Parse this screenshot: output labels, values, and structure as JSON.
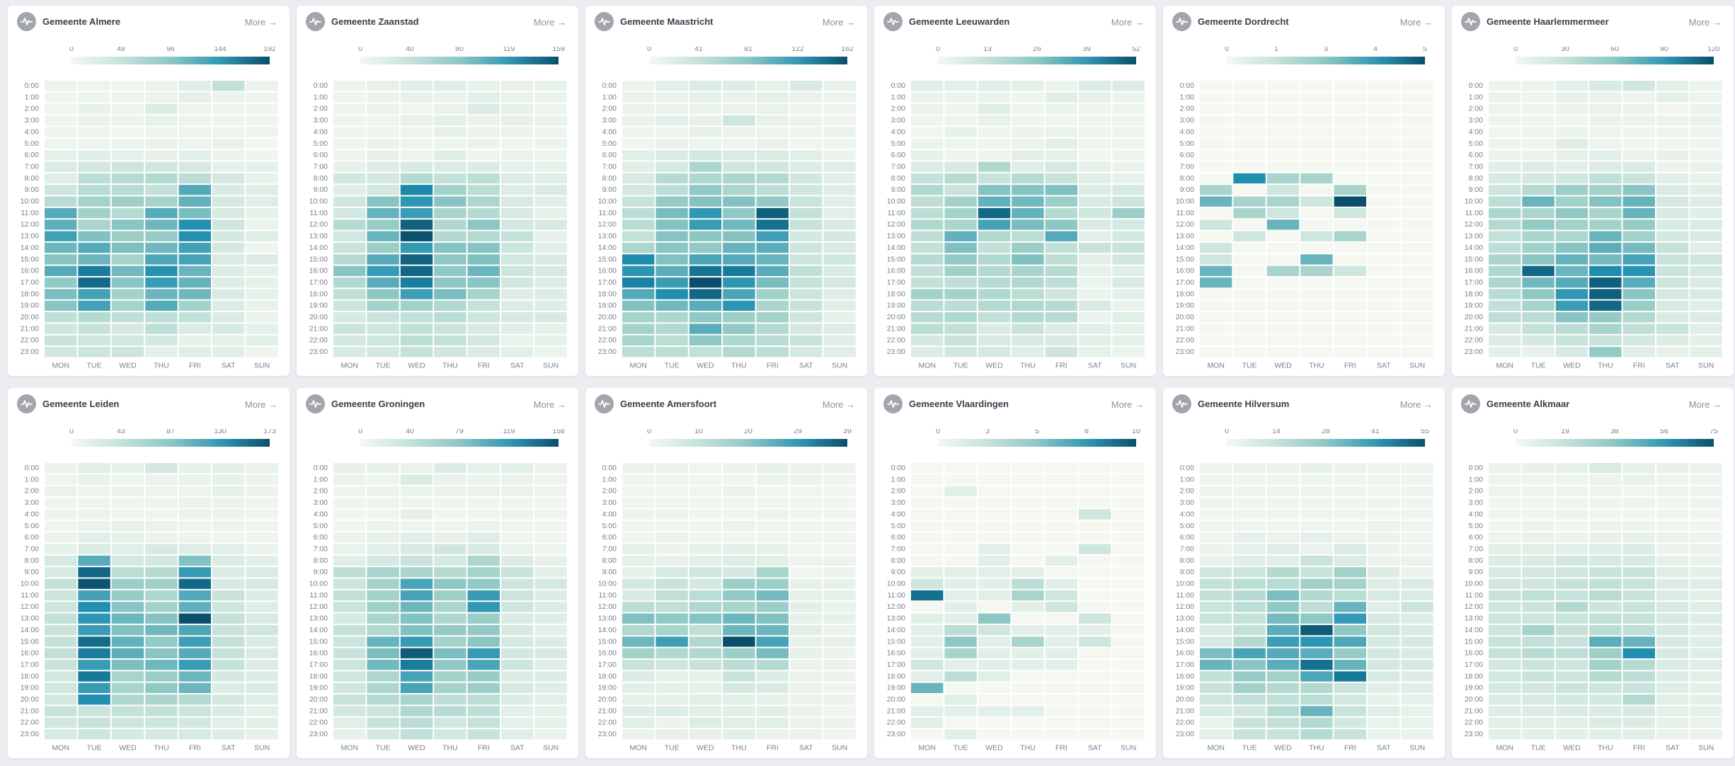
{
  "more_label": "More →",
  "days": [
    "MON",
    "TUE",
    "WED",
    "THU",
    "FRI",
    "SAT",
    "SUN"
  ],
  "hours": [
    "0:00",
    "1:00",
    "2:00",
    "3:00",
    "4:00",
    "5:00",
    "6:00",
    "7:00",
    "8:00",
    "9:00",
    "10:00",
    "11:00",
    "12:00",
    "13:00",
    "14:00",
    "15:00",
    "16:00",
    "17:00",
    "18:00",
    "19:00",
    "20:00",
    "21:00",
    "22:00",
    "23:00"
  ],
  "colors": {
    "low": "#f5f8f1",
    "mid": "#9fd0c7",
    "high": "#1f8fb0",
    "max": "#0b4f6c",
    "card": "#ffffff",
    "page": "#ececf1"
  },
  "chart_data": [
    {
      "type": "heatmap",
      "title": "Gemeente Almere",
      "scale_ticks": [
        "0",
        "48",
        "96",
        "144",
        "192"
      ],
      "max": 192,
      "rows": [
        "11,7,7,11,21,52,10",
        "5,9,9,11,17,11,8",
        "5,14,8,26,9,8,7",
        "6,11,11,15,9,8,5",
        "6,9,5,8,9,8,6",
        "7,8,10,12,9,13,4",
        "17,21,17,13,19,11,7",
        "28,36,40,37,32,17,17",
        "23,56,63,67,58,32,13",
        "39,61,61,49,126,29,23",
        "61,81,86,81,118,32,23",
        "125,84,63,124,106,29,16",
        "121,75,98,113,152,39,11",
        "136,102,88,91,152,32,23",
        "113,125,104,111,135,32,7",
        "99,113,81,129,133,28,25",
        "126,165,110,150,115,26,18",
        "93,176,99,140,117,23,16",
        "105,134,83,114,112,29,16",
        "98,135,79,125,81,27,13",
        "54,65,53,55,52,25,10",
        "39,47,32,56,28,29,17",
        "43,38,36,34,14,15,18",
        "37,41,40,18,21,19,8"
      ]
    },
    {
      "type": "heatmap",
      "title": "Gemeente Zaanstad",
      "scale_ticks": [
        "0",
        "40",
        "80",
        "119",
        "159"
      ],
      "max": 159,
      "rows": [
        "7,12,18,19,11,12,13",
        "6,8,13,10,16,11,10",
        "7,10,4,10,22,13,7",
        "7,6,13,15,8,12,10",
        "6,6,5,13,8,9,6",
        "6,9,6,6,8,5,8",
        "7,12,7,17,6,10,7",
        "12,20,24,22,21,14,13",
        "30,28,53,41,47,21,19",
        "17,30,130,68,49,20,23",
        "31,82,121,82,60,26,17",
        "29,96,115,64,53,26,13",
        "53,75,150,57,80,29,25",
        "30,95,158,55,53,40,14",
        "38,73,118,83,82,34,16",
        "53,104,150,79,85,29,25",
        "82,117,147,78,94,33,26",
        "57,103,135,79,82,30,21",
        "44,79,114,87,66,20,22",
        "34,67,70,57,40,22,19",
        "26,36,43,49,34,26,25",
        "36,33,43,37,26,18,12",
        "29,33,47,41,28,10,13",
        "24,30,40,32,22,16,9"
      ]
    },
    {
      "type": "heatmap",
      "title": "Gemeente Maastricht",
      "scale_ticks": [
        "0",
        "41",
        "81",
        "122",
        "162"
      ],
      "max": 162,
      "rows": [
        "8,16,22,22,12,25,11",
        "11,10,13,11,14,11,8",
        "9,9,9,11,11,6,6",
        "9,14,12,35,12,9,6",
        "8,8,13,9,8,8,10",
        "4,11,6,7,10,4,8",
        "16,24,30,24,24,16,9",
        "17,27,62,33,33,22,19",
        "25,54,60,63,57,31,16",
        "29,49,79,63,48,31,20",
        "39,77,85,85,78,37,16",
        "49,90,122,80,154,43,18",
        "51,85,118,94,145,40,25",
        "41,84,81,85,116,28,27",
        "63,82,79,98,103,33,25",
        "131,86,110,106,97,34,31",
        "124,103,143,139,104,45,23",
        "136,118,162,124,90,41,28",
        "106,130,150,110,71,34,20",
        "85,93,103,124,63,40,19",
        "67,61,80,74,70,34,12",
        "68,57,104,79,56,30,20",
        "66,50,80,60,51,38,18",
        "49,49,44,57,49,28,16"
      ]
    },
    {
      "type": "heatmap",
      "title": "Gemeente Leeuwarden",
      "scale_ticks": [
        "0",
        "13",
        "26",
        "39",
        "52"
      ],
      "max": 52,
      "rows": [
        "6,5,6,5,3,7,7",
        "3,3,3,2,6,4,3",
        "3,2,6,2,3,2,2",
        "2,2,4,2,2,2,2",
        "1,4,2,3,3,2,2",
        "3,2,2,3,5,2,2",
        "4,2,2,5,4,1,2",
        "7,8,19,6,9,4,3",
        "13,17,12,17,12,6,4",
        "19,12,27,27,28,7,9",
        "15,22,32,30,24,8,11",
        "16,22,48,32,18,10,24",
        "19,20,36,29,26,8,9",
        "15,32,19,16,34,5,9",
        "14,28,14,24,14,12,12",
        "17,25,19,28,15,5,10",
        "14,23,18,21,17,4,6",
        "14,15,17,19,15,3,8",
        "22,22,19,16,11,3,5",
        "16,16,18,19,17,8,3",
        "17,19,14,18,17,3,6",
        "16,15,8,12,7,6,4",
        "9,12,8,8,8,5,4",
        "7,10,9,6,11,4,3"
      ]
    },
    {
      "type": "heatmap",
      "title": "Gemeente Dordrecht",
      "scale_ticks": [
        "0",
        "1",
        "3",
        "4",
        "5"
      ],
      "max": 5,
      "rows": [
        "0,0,0,0,0,0,0",
        "0,0,0,0,0,0,0",
        "0,0,0,0,0,0,0",
        "0,0,0,0,0,0,0",
        "0,0,0,0,0,0,0",
        "0,0,0,0,0,0,0",
        "0,0,0,0,0,0,0",
        "0,0,0,0,0,0,0",
        "0,4,2,2,0,0,0",
        "2,0,1,0,2,0,0",
        "3,2,2,1,5,0,0",
        "0,2,1,0,1,0,0",
        "1,0,3,0,0,0,0",
        "0,1,0,1,2,0,0",
        "1,0,0,0,0,0,0",
        "1,0,0,3,0,0,0",
        "3,0,2,2,1,0,0",
        "3,0,0,0,0,0,0",
        "0,0,0,0,0,0,0",
        "0,0,0,0,0,0,0",
        "0,0,0,0,0,0,0",
        "0,0,0,0,0,0,0",
        "0,0,0,0,0,0,0",
        "0,0,0,0,0,0,0"
      ]
    },
    {
      "type": "heatmap",
      "title": "Gemeente Haarlemmermeer",
      "scale_ticks": [
        "0",
        "30",
        "60",
        "90",
        "120"
      ],
      "max": 120,
      "rows": [
        "5,7,12,18,23,11,7",
        "6,5,9,8,5,11,5",
        "5,4,6,8,6,3,6",
        "4,4,3,6,6,6,6",
        "3,4,6,5,4,4,5",
        "4,4,13,5,3,3,3",
        "6,6,9,12,7,8,5",
        "12,15,12,16,17,7,8",
        "19,21,23,33,27,12,8",
        "24,41,56,51,61,17,13",
        "35,72,53,63,73,21,15",
        "45,46,59,48,72,19,14",
        "40,58,53,50,57,18,16",
        "31,47,45,72,53,22,18",
        "35,52,62,76,68,30,13",
        "46,61,73,68,83,28,24",
        "43,111,71,97,93,27,22",
        "45,69,78,114,77,24,17",
        "38,59,91,114,61,21,18",
        "32,49,87,111,56,19,13",
        "35,36,62,57,42,18,16",
        "19,31,36,48,33,28,13",
        "16,20,29,29,21,15,11",
        "11,9,18,58,13,9,11"
      ]
    },
    {
      "type": "heatmap",
      "title": "Gemeente Leiden",
      "scale_ticks": [
        "0",
        "43",
        "87",
        "130",
        "173"
      ],
      "max": 173,
      "rows": [
        "10,18,14,29,14,16,11",
        "6,12,6,9,11,14,9",
        "11,8,9,8,8,14,9",
        "5,7,6,7,9,9,6",
        "7,9,6,5,9,9,6",
        "5,11,14,11,5,8,5",
        "10,17,14,10,8,6,8",
        "14,23,20,27,21,17,9",
        "29,112,32,33,91,24,17",
        "27,161,53,58,127,24,25",
        "45,171,80,77,159,27,28",
        "38,122,82,64,114,40,22",
        "35,138,89,73,108,36,21",
        "45,132,102,90,173,45,26",
        "40,126,91,99,117,40,35",
        "43,158,107,84,124,44,25",
        "47,148,110,88,113,43,26",
        "40,127,94,100,126,43,23",
        "33,150,70,80,102,29,23",
        "34,126,71,85,102,24,25",
        "32,138,64,66,59,29,21",
        "40,39,43,45,39,25,16",
        "33,41,35,37,32,17,16",
        "27,37,30,29,28,21,13"
      ]
    },
    {
      "type": "heatmap",
      "title": "Gemeente Groningen",
      "scale_ticks": [
        "0",
        "40",
        "79",
        "119",
        "158"
      ],
      "max": 158,
      "rows": [
        "11,13,10,21,14,16,8",
        "8,6,23,10,8,8,7",
        "5,8,9,8,10,9,7",
        "5,7,6,6,6,5,4",
        "4,5,14,4,5,6,5",
        "4,8,6,5,8,4,4",
        "8,13,17,12,19,6,5",
        "11,16,24,31,26,11,7",
        "17,27,37,27,58,21,12",
        "45,64,61,54,65,39,16",
        "34,67,108,79,77,33,28",
        "42,69,109,72,116,35,21",
        "37,71,93,61,118,32,23",
        "26,63,83,58,73,23,19",
        "41,57,84,75,76,25,16",
        "33,95,116,66,80,27,22",
        "38,87,152,86,117,29,25",
        "35,91,136,77,108,33,19",
        "32,60,109,68,74,23,21",
        "31,60,109,67,73,27,19",
        "39,52,64,47,47,20,16",
        "30,36,57,51,46,16,13",
        "17,37,48,31,40,14,13",
        "13,28,44,29,39,18,10"
      ]
    },
    {
      "type": "heatmap",
      "title": "Gemeente Amersfoort",
      "scale_ticks": [
        "0",
        "10",
        "20",
        "29",
        "39"
      ],
      "max": 39,
      "rows": [
        "2,2,1,2,3,2,2",
        "1,1,1,1,2,2,1",
        "1,1,1,2,1,1,1",
        "1,1,1,1,1,1,1",
        "2,2,1,1,2,1,1",
        "1,1,1,2,1,1,1",
        "1,2,1,1,1,1,1",
        "3,2,3,4,3,1,1",
        "3,3,4,5,4,2,2",
        "3,6,8,7,16,1,2",
        "7,9,7,18,18,3,3",
        "6,11,12,19,22,3,3",
        "12,11,14,16,18,4,2",
        "21,19,20,23,21,3,3",
        "14,16,11,23,23,4,2",
        "23,28,14,39,27,3,3",
        "17,14,14,18,22,3,2",
        "9,8,9,12,13,2,2",
        "5,3,3,9,5,2,2",
        "4,4,3,7,6,2,1",
        "3,3,4,4,3,2,2",
        "5,5,4,4,4,2,1",
        "4,2,5,4,4,2,2",
        "2,3,3,4,2,2,1"
      ]
    },
    {
      "type": "heatmap",
      "title": "Gemeente Vlaardingen",
      "scale_ticks": [
        "0",
        "3",
        "5",
        "8",
        "10"
      ],
      "max": 10,
      "rows": [
        "0,0,0,0,0,0,0",
        "0,0,0,0,0,0,0",
        "0,1,0,0,0,0,0",
        "0,0,0,0,0,0,0",
        "0,0,0,0,0,2,0",
        "0,0,0,0,0,0,0",
        "0,0,0,0,0,0,0",
        "0,0,1,0,0,2,0",
        "0,0,1,0,1,0,0",
        "1,1,1,1,0,0,0",
        "2,1,1,3,1,0,0",
        "9,1,1,4,2,0,0",
        "0,1,0,1,2,0,0",
        "1,1,5,0,0,2,0",
        "1,3,2,1,1,1,0",
        "1,5,1,4,1,2,0",
        "1,4,1,1,1,0,0",
        "2,1,1,1,1,0,0",
        "1,3,1,0,0,0,0",
        "6,0,0,0,0,0,0",
        "0,1,0,0,0,0,0",
        "1,1,1,1,0,0,0",
        "1,0,0,0,0,0,0",
        "0,1,0,0,0,0,0"
      ]
    },
    {
      "type": "heatmap",
      "title": "Gemeente Hilversum",
      "scale_ticks": [
        "0",
        "14",
        "28",
        "41",
        "55"
      ],
      "max": 55,
      "rows": [
        "2,3,3,4,3,2,2",
        "2,2,2,2,2,2,2",
        "2,2,2,2,2,1,2",
        "2,2,2,2,2,2,2",
        "1,2,2,2,2,1,2",
        "2,2,2,2,2,3,2",
        "2,5,3,5,3,3,2",
        "3,5,7,3,8,3,2",
        "4,6,6,13,8,3,3",
        "11,12,19,13,24,7,3",
        "14,17,18,24,23,7,8",
        "15,18,30,19,17,9,8",
        "13,17,27,16,33,6,12",
        "13,14,31,27,41,9,7",
        "8,14,35,53,27,11,8",
        "9,19,40,42,37,9,9",
        "30,38,36,35,26,10,8",
        "33,28,35,49,33,10,9",
        "15,26,24,37,48,9,7",
        "13,24,19,19,12,6,6",
        "11,15,15,17,10,4,5",
        "9,11,18,33,13,6,4",
        "4,13,14,19,10,4,4",
        "5,13,13,18,13,4,3"
      ]
    },
    {
      "type": "heatmap",
      "title": "Gemeente Alkmaar",
      "scale_ticks": [
        "0",
        "19",
        "38",
        "56",
        "75"
      ],
      "max": 75,
      "rows": [
        "4,5,6,11,6,5,4",
        "3,3,3,4,5,3,3",
        "3,3,3,3,2,3,3",
        "2,2,3,3,3,2,3",
        "2,2,3,2,2,2,2",
        "2,3,2,3,3,2,2",
        "3,5,4,5,6,4,3",
        "7,8,8,9,10,4,4",
        "10,11,14,12,12,6,5",
        "12,14,15,17,17,9,7",
        "14,15,19,21,18,10,9",
        "18,21,18,24,17,11,8",
        "15,17,26,16,18,12,9",
        "16,16,18,21,19,12,9",
        "16,31,19,23,21,12,9",
        "18,20,18,48,45,12,9",
        "19,24,22,34,60,12,9",
        "14,17,16,32,25,11,9",
        "14,17,16,25,22,10,8",
        "13,14,17,16,18,9,7",
        "11,12,13,13,25,8,7",
        "9,10,11,11,12,7,6",
        "8,8,8,11,10,6,5",
        "7,7,7,8,8,5,5"
      ]
    }
  ]
}
